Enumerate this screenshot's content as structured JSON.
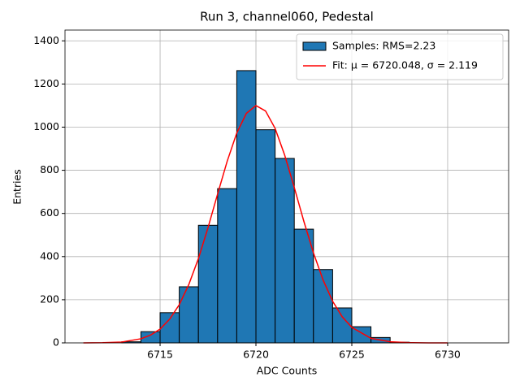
{
  "chart_data": {
    "type": "histogram",
    "title": "Run 3, channel060, Pedestal",
    "x_label": "ADC Counts",
    "y_label": "Entries",
    "bins": [
      6711,
      6712,
      6713,
      6714,
      6715,
      6716,
      6717,
      6718,
      6719,
      6720,
      6721,
      6722,
      6723,
      6724,
      6725,
      6726,
      6727,
      6728,
      6729,
      6730,
      6731,
      6732
    ],
    "series": [
      {
        "name": "Samples: RMS=2.23",
        "color": "#1f77b4",
        "values": [
          0,
          0,
          5,
          52,
          140,
          260,
          545,
          715,
          1262,
          988,
          855,
          527,
          340,
          162,
          75,
          25,
          3,
          0,
          0,
          0,
          0
        ]
      },
      {
        "name": "Fit: μ = 6720.048, σ = 2.119",
        "color": "#ff0000",
        "type": "line",
        "x": [
          6711,
          6712,
          6713,
          6714,
          6714.5,
          6715,
          6715.5,
          6716,
          6716.5,
          6717,
          6717.5,
          6718,
          6718.5,
          6719,
          6719.5,
          6720,
          6720.5,
          6721,
          6721.5,
          6722,
          6722.5,
          6723,
          6723.5,
          6724,
          6724.5,
          6725,
          6726,
          6727,
          6728,
          6729,
          6730
        ],
        "values": [
          0,
          1,
          4,
          19,
          36,
          64,
          110,
          177,
          271,
          391,
          534,
          690,
          842,
          973,
          1064,
          1100,
          1075,
          994,
          870,
          720,
          563,
          417,
          292,
          193,
          121,
          72,
          21,
          5,
          1,
          0,
          0
        ]
      }
    ],
    "xlim": [
      6710.04,
      6733.18
    ],
    "ylim": [
      0,
      1450
    ],
    "xticks": [
      6715,
      6720,
      6725,
      6730
    ],
    "yticks": [
      0,
      200,
      400,
      600,
      800,
      1000,
      1200,
      1400
    ],
    "grid": true,
    "legend": "upper right"
  }
}
